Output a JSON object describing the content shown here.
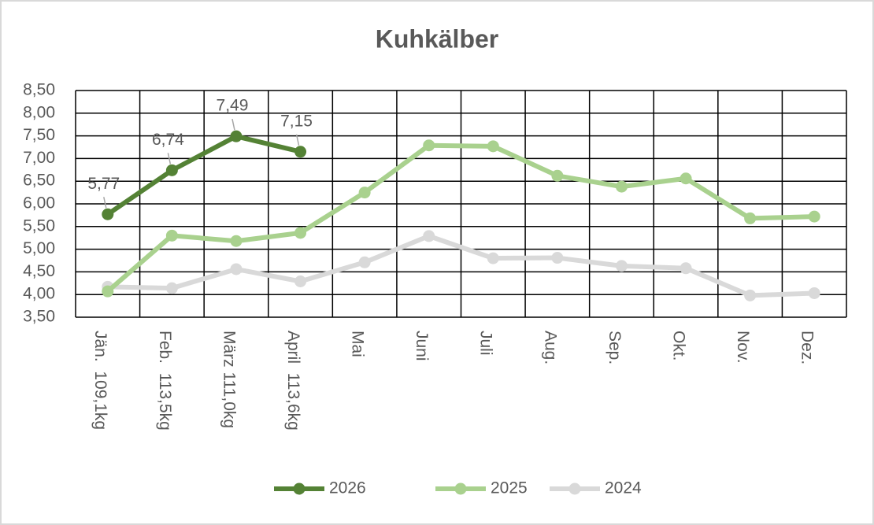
{
  "chart_data": {
    "type": "line",
    "title": "Kuhkälber",
    "categories": [
      "Jän.  109,1kg",
      "Feb.  113,5kg",
      "März 111,0kg",
      "April  113,6kg",
      "Mai",
      "Juni",
      "Juli",
      "Aug.",
      "Sep.",
      "Okt.",
      "Nov.",
      "Dez."
    ],
    "series": [
      {
        "name": "2026",
        "color": "#548235",
        "values": [
          5.77,
          6.74,
          7.49,
          7.15,
          null,
          null,
          null,
          null,
          null,
          null,
          null,
          null
        ],
        "value_labels": [
          "5,77",
          "6,74",
          "7,49",
          "7,15",
          null,
          null,
          null,
          null,
          null,
          null,
          null,
          null
        ]
      },
      {
        "name": "2025",
        "color": "#a9d18e",
        "values": [
          4.07,
          5.3,
          5.18,
          5.36,
          6.25,
          7.29,
          7.27,
          6.62,
          6.38,
          6.56,
          5.68,
          5.72
        ]
      },
      {
        "name": "2024",
        "color": "#d9d9d9",
        "values": [
          4.17,
          4.14,
          4.56,
          4.29,
          4.71,
          5.29,
          4.8,
          4.81,
          4.63,
          4.58,
          3.98,
          4.03
        ]
      }
    ],
    "ylim": [
      3.5,
      8.5
    ],
    "yticks": [
      {
        "value": 3.5,
        "label": "3,50"
      },
      {
        "value": 4,
        "label": "4,00"
      },
      {
        "value": 4.5,
        "label": "4,50"
      },
      {
        "value": 5,
        "label": "5,00"
      },
      {
        "value": 5.5,
        "label": "5,50"
      },
      {
        "value": 6,
        "label": "6,00"
      },
      {
        "value": 6.5,
        "label": "6,50"
      },
      {
        "value": 7,
        "label": "7,00"
      },
      {
        "value": 7.5,
        "label": "7,50"
      },
      {
        "value": 8,
        "label": "8,00"
      },
      {
        "value": 8.5,
        "label": "8,50"
      }
    ],
    "grid": true,
    "legend": "bottom"
  }
}
